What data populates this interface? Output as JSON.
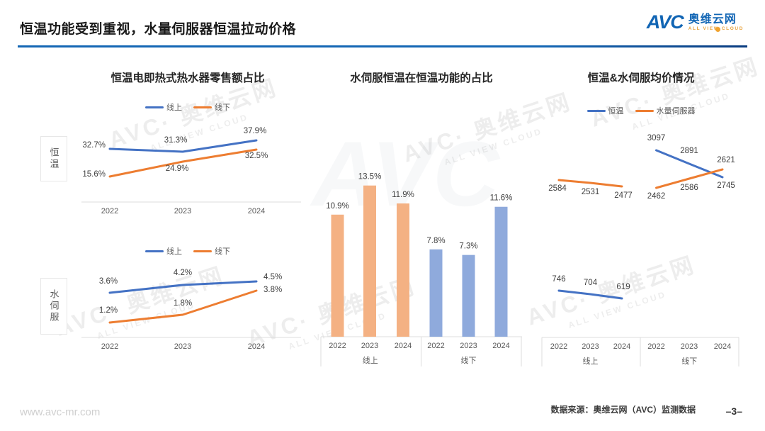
{
  "header": {
    "title": "恒温功能受到重视，水量伺服器恒温拉动价格",
    "logo": {
      "text": "AVC",
      "cn": "奥维云网",
      "en": "ALL VIEW CLOUD"
    }
  },
  "watermark": {
    "avc": "AVC",
    "cn": "奥维云网",
    "en": "ALL VIEW CLOUD"
  },
  "footer": {
    "site": "www.avc-mr.com",
    "source": "数据来源：奥维云网（AVC）监测数据",
    "page": "–3–"
  },
  "colors": {
    "blue": "#4472C4",
    "orange": "#ED7D31",
    "barBlue": "#8FAADC",
    "barOrange": "#F4B183"
  },
  "chart_data": [
    {
      "id": "retail-share",
      "type": "line",
      "title": "恒温电即热式热水器零售额占比",
      "categories": [
        "2022",
        "2023",
        "2024"
      ],
      "legend": [
        {
          "label": "线上",
          "color_key": "blue"
        },
        {
          "label": "线下",
          "color_key": "orange"
        }
      ],
      "sections": [
        {
          "row_label": "恒温",
          "series": [
            {
              "name": "线上",
              "color_key": "blue",
              "values": [
                32.7,
                31.3,
                37.9
              ],
              "labels": [
                "32.7%",
                "31.3%",
                "37.9%"
              ]
            },
            {
              "name": "线下",
              "color_key": "orange",
              "values": [
                15.6,
                24.9,
                32.5
              ],
              "labels": [
                "15.6%",
                "24.9%",
                "32.5%"
              ]
            }
          ]
        },
        {
          "row_label": "水伺服",
          "series": [
            {
              "name": "线上",
              "color_key": "blue",
              "values": [
                3.6,
                4.2,
                4.5
              ],
              "labels": [
                "3.6%",
                "4.2%",
                "4.5%"
              ]
            },
            {
              "name": "线下",
              "color_key": "orange",
              "values": [
                1.2,
                1.8,
                3.8
              ],
              "labels": [
                "1.2%",
                "1.8%",
                "3.8%"
              ]
            }
          ]
        }
      ]
    },
    {
      "id": "servo-share",
      "type": "bar",
      "title": "水伺服恒温在恒温功能的占比",
      "ylim": [
        0,
        15
      ],
      "groups": [
        {
          "label": "线上",
          "color_key": "barOrange",
          "categories": [
            "2022",
            "2023",
            "2024"
          ],
          "values": [
            10.9,
            13.5,
            11.9
          ],
          "labels": [
            "10.9%",
            "13.5%",
            "11.9%"
          ]
        },
        {
          "label": "线下",
          "color_key": "barBlue",
          "categories": [
            "2022",
            "2023",
            "2024"
          ],
          "values": [
            7.8,
            7.3,
            11.6
          ],
          "labels": [
            "7.8%",
            "7.3%",
            "11.6%"
          ]
        }
      ]
    },
    {
      "id": "avg-price",
      "type": "line",
      "title": "恒温&水伺服均价情况",
      "legend": [
        {
          "label": "恒温",
          "color_key": "blue"
        },
        {
          "label": "水量伺服器",
          "color_key": "orange"
        }
      ],
      "groups": [
        {
          "label": "线上",
          "categories": [
            "2022",
            "2023",
            "2024"
          ],
          "series": [
            {
              "name": "恒温",
              "color_key": "blue",
              "values": [
                746,
                704,
                619
              ],
              "labels": [
                "746",
                "704",
                "619"
              ]
            },
            {
              "name": "水量伺服器",
              "color_key": "orange",
              "values": [
                2584,
                2531,
                2477
              ],
              "labels": [
                "2584",
                "2531",
                "2477"
              ]
            }
          ]
        },
        {
          "label": "线下",
          "categories": [
            "2022",
            "2023",
            "2024"
          ],
          "series": [
            {
              "name": "恒温",
              "color_key": "blue",
              "values": [
                3097,
                2891,
                2745
              ],
              "labels": [
                "3097",
                "2891",
                "2745"
              ]
            },
            {
              "name": "水量伺服器",
              "color_key": "orange",
              "values": [
                2462,
                2586,
                2621
              ],
              "labels": [
                "2462",
                "2586",
                "2621"
              ]
            }
          ]
        }
      ]
    }
  ]
}
